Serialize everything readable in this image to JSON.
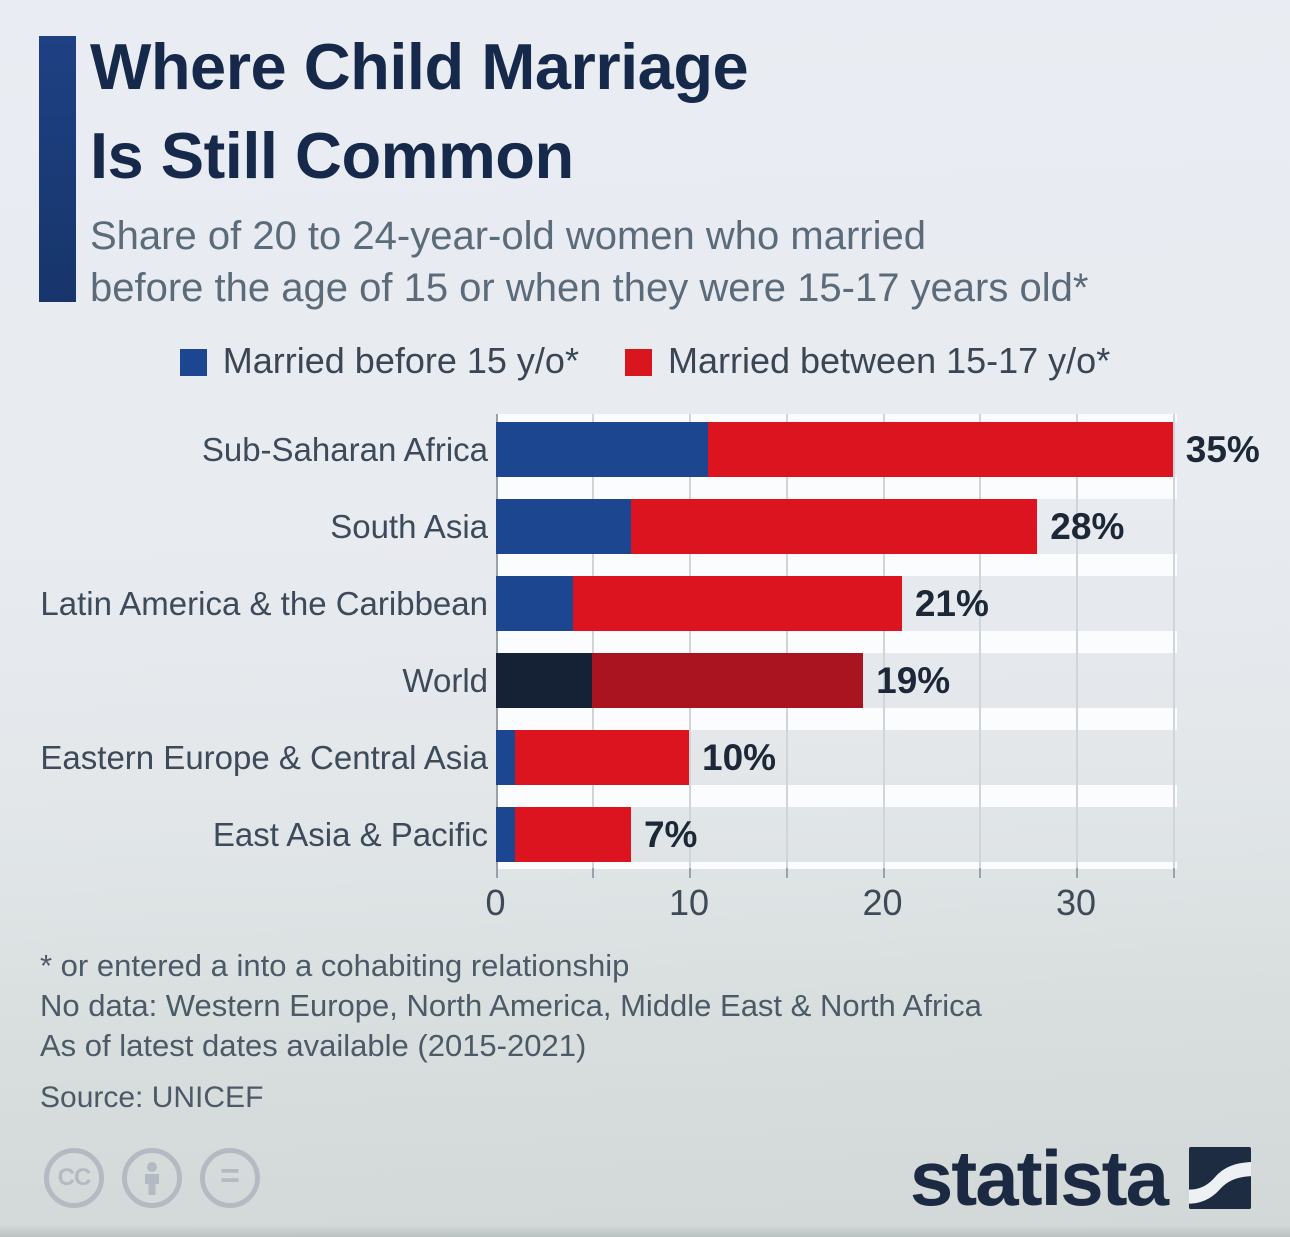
{
  "header": {
    "title_line1": "Where Child Marriage",
    "title_line2": "Is Still Common",
    "subtitle_line1": "Share of 20 to 24-year-old women who married",
    "subtitle_line2": "before the age of 15 or when they were 15-17 years old*",
    "accent_color": "#1e4184"
  },
  "legend": {
    "items": [
      {
        "label": "Married before 15 y/o*",
        "color": "#1c4690"
      },
      {
        "label": "Married between 15-17 y/o*",
        "color": "#d9151d"
      }
    ]
  },
  "chart_data": {
    "type": "bar",
    "orientation": "horizontal",
    "stacked": true,
    "categories": [
      "Sub-Saharan Africa",
      "South Asia",
      "Latin America & the Caribbean",
      "World",
      "Eastern Europe & Central Asia",
      "East Asia & Pacific"
    ],
    "series": [
      {
        "name": "Married before 15 y/o*",
        "color": "#1c4690",
        "highlight_color": "#152135",
        "values": [
          11,
          7,
          4,
          5,
          1,
          1
        ]
      },
      {
        "name": "Married between 15-17 y/o*",
        "color": "#dc1420",
        "highlight_color": "#a91420",
        "values": [
          24,
          21,
          17,
          14,
          9,
          6
        ]
      }
    ],
    "totals": [
      35,
      28,
      21,
      19,
      10,
      7
    ],
    "total_labels": [
      "35%",
      "28%",
      "21%",
      "19%",
      "10%",
      "7%"
    ],
    "highlighted_category": "World",
    "xlim": [
      0,
      35
    ],
    "xticks": [
      0,
      10,
      20,
      30
    ],
    "minor_grid_every": 5,
    "grid": true,
    "legend_position": "top"
  },
  "footnotes": {
    "lines": [
      "* or entered a into a cohabiting relationship",
      "No data: Western Europe, North America, Middle East & North Africa",
      "As of latest dates available (2015-2021)"
    ],
    "source": "Source: UNICEF"
  },
  "branding": {
    "cc_text": "CC",
    "equals_text": "=",
    "logo_text": "statista",
    "logo_color": "#1d2c40"
  }
}
